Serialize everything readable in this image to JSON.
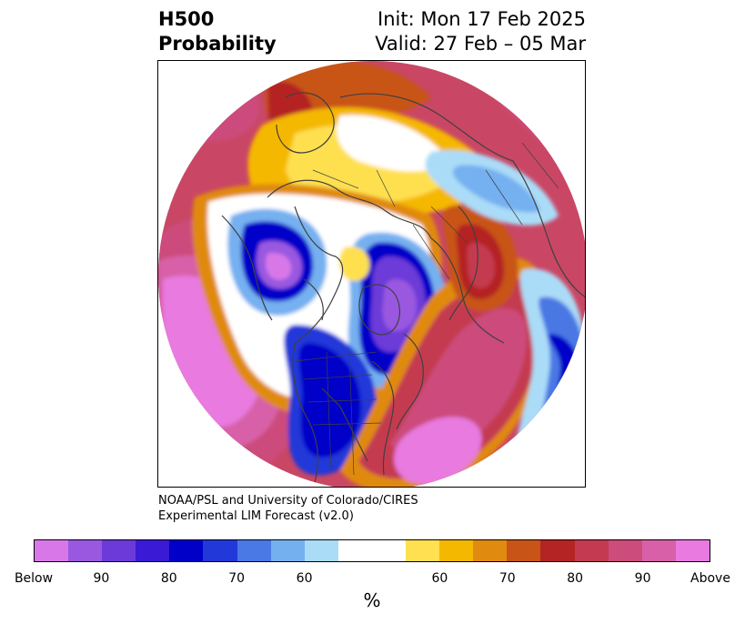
{
  "title": {
    "left_line1": "H500",
    "left_line2": "Probability",
    "right_line1": "Init: Mon 17 Feb 2025",
    "right_line2": "Valid: 27 Feb – 05 Mar"
  },
  "credit": {
    "line1": "NOAA/PSL and University of Colorado/CIRES",
    "line2": "Experimental LIM Forecast (v2.0)"
  },
  "colorbar": {
    "colors": [
      "#d878e8",
      "#9a58e0",
      "#6c3ad8",
      "#3a1ad4",
      "#0000c8",
      "#2238d8",
      "#4a78e4",
      "#74b0f0",
      "#aadcf8",
      "#ffffff",
      "#ffffff",
      "#fee050",
      "#f5b800",
      "#e08a10",
      "#c85418",
      "#b42424",
      "#c43a50",
      "#cc4c7c",
      "#d860a8",
      "#e87ae0"
    ],
    "tick_labels": [
      "Below",
      "90",
      "80",
      "70",
      "60",
      "60",
      "70",
      "80",
      "90",
      "Above"
    ],
    "unit": "%"
  },
  "map": {
    "projection": "north-polar-stereographic",
    "field": "500 hPa height anomaly probability",
    "features": [
      {
        "region": "North Pacific",
        "category": "Above",
        "level": 90
      },
      {
        "region": "Western Canada / Alaska coast",
        "category": "Below",
        "level": 90
      },
      {
        "region": "Hudson Bay / Eastern Canada",
        "category": "Below",
        "level": 90
      },
      {
        "region": "Central United States",
        "category": "Below",
        "level": 70
      },
      {
        "region": "Western North Atlantic",
        "category": "Above",
        "level": 90
      },
      {
        "region": "Europe / Scandinavia",
        "category": "Above",
        "level": 80
      },
      {
        "region": "Siberia",
        "category": "Above",
        "level": 60
      },
      {
        "region": "Eastern Asia",
        "category": "Below",
        "level": 60
      }
    ]
  }
}
